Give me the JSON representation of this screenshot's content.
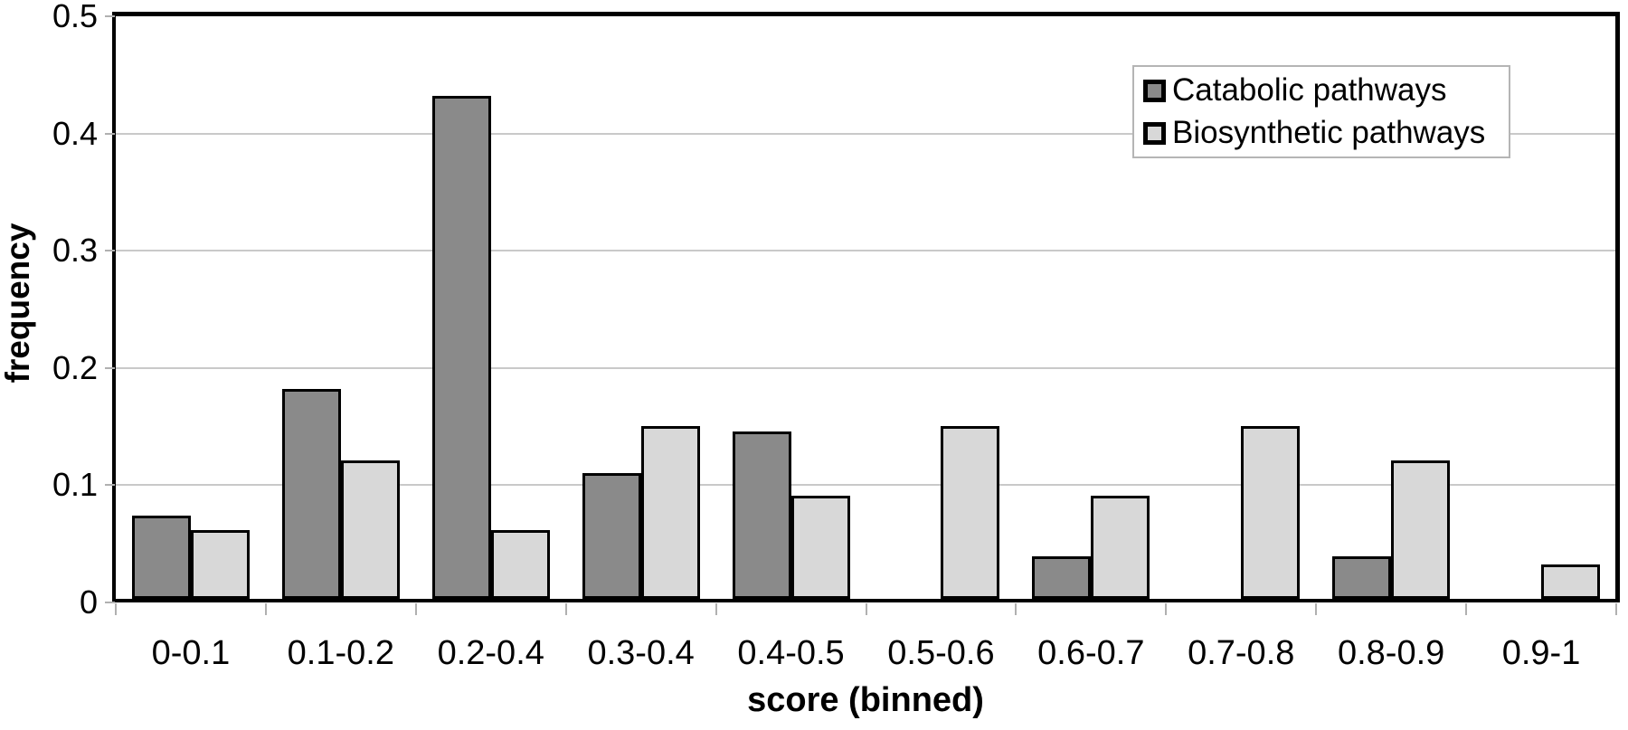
{
  "chart_data": {
    "type": "bar",
    "title": "",
    "xlabel": "score (binned)",
    "ylabel": "frequency",
    "categories": [
      "0-0.1",
      "0.1-0.2",
      "0.2-0.4",
      "0.3-0.4",
      "0.4-0.5",
      "0.5-0.6",
      "0.6-0.7",
      "0.7-0.8",
      "0.8-0.9",
      "0.9-1"
    ],
    "series": [
      {
        "name": "Catabolic pathways",
        "color": "#8a8a8a",
        "values": [
          0.071,
          0.179,
          0.429,
          0.107,
          0.143,
          0,
          0.036,
          0,
          0.036,
          0
        ]
      },
      {
        "name": "Biosynthetic pathways",
        "color": "#d8d8d8",
        "values": [
          0.059,
          0.118,
          0.059,
          0.147,
          0.088,
          0.147,
          0.088,
          0.147,
          0.118,
          0.029
        ]
      }
    ],
    "ylim": [
      0,
      0.5
    ],
    "yticks": [
      {
        "label": "0",
        "value": 0
      },
      {
        "label": "0.1",
        "value": 0.1
      },
      {
        "label": "0.2",
        "value": 0.2
      },
      {
        "label": "0.3",
        "value": 0.3
      },
      {
        "label": "0.4",
        "value": 0.4
      },
      {
        "label": "0.5",
        "value": 0.5
      }
    ],
    "grid": "horizontal-at-0.1-steps-excluding-top",
    "legend_position": "top-right",
    "colors": {
      "bar_border": "#000000",
      "gridline": "#c9c9c9",
      "frame": "#000000",
      "background": "#ffffff",
      "tick": "#b0b0b0"
    }
  }
}
